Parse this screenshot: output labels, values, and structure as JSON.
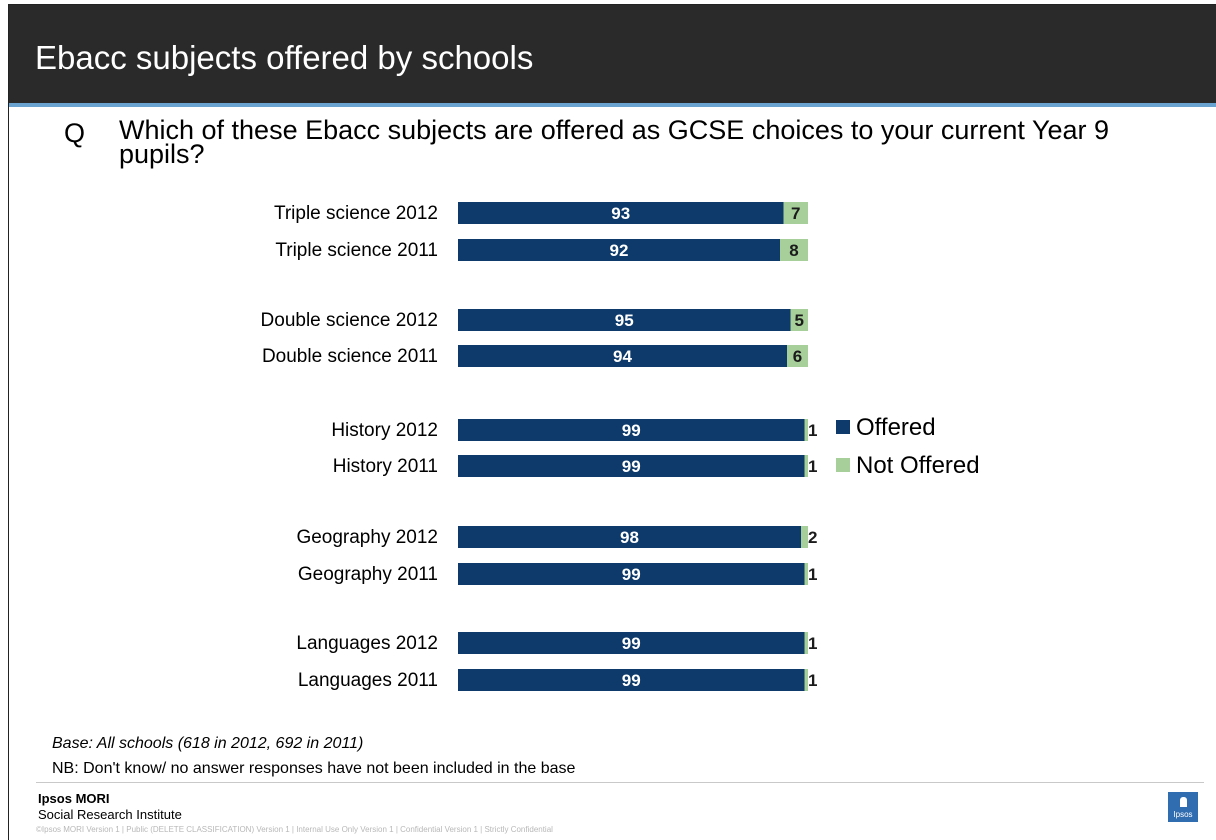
{
  "slide": {
    "title": "Ebacc subjects offered by schools",
    "question_marker": "Q",
    "question": "Which of these Ebacc subjects are offered as GCSE choices to your current Year 9 pupils?",
    "base_note": "Base: All schools (618 in 2012, 692 in 2011)",
    "nb_note": "NB: Don't know/ no answer responses have not been included in the base",
    "brand": "Ipsos MORI",
    "brand_sub": "Social Research Institute",
    "footer_line": "©Ipsos MORI   Version 1 | Public (DELETE CLASSIFICATION)   Version 1 | Internal Use Only   Version 1 | Confidential   Version 1 | Strictly Confidential",
    "logo_text": "Ipsos"
  },
  "chart_data": {
    "type": "bar",
    "orientation": "horizontal",
    "stacked": true,
    "categories": [
      "Triple science 2012",
      "Triple science 2011",
      "Double science 2012",
      "Double science 2011",
      "History 2012",
      "History 2011",
      "Geography 2012",
      "Geography 2011",
      "Languages 2012",
      "Languages 2011"
    ],
    "series": [
      {
        "name": "Offered",
        "color": "#0d3a6b",
        "values": [
          93,
          92,
          95,
          94,
          99,
          99,
          98,
          99,
          99,
          99
        ]
      },
      {
        "name": "Not Offered",
        "color": "#a6cf9a",
        "values": [
          7,
          8,
          5,
          6,
          1,
          1,
          2,
          1,
          1,
          1
        ]
      }
    ],
    "xlim": [
      0,
      100
    ],
    "legend_position": "right",
    "grid": false
  }
}
